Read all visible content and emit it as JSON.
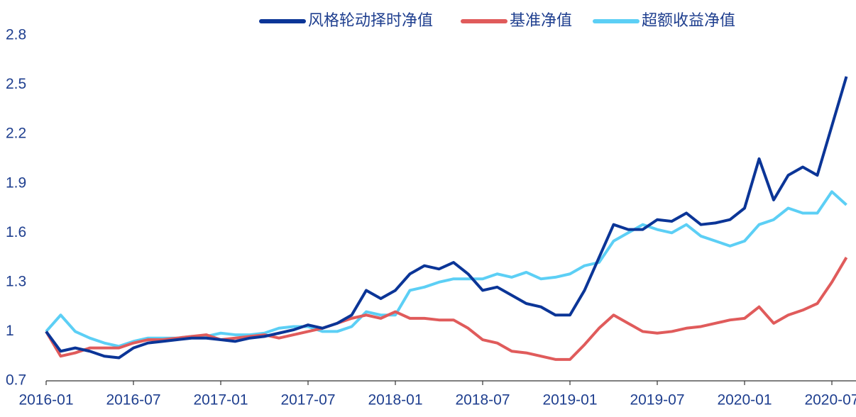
{
  "chart_data": {
    "type": "line",
    "x": [
      "2016-01",
      "2016-02",
      "2016-03",
      "2016-04",
      "2016-05",
      "2016-06",
      "2016-07",
      "2016-08",
      "2016-09",
      "2016-10",
      "2016-11",
      "2016-12",
      "2017-01",
      "2017-02",
      "2017-03",
      "2017-04",
      "2017-05",
      "2017-06",
      "2017-07",
      "2017-08",
      "2017-09",
      "2017-10",
      "2017-11",
      "2017-12",
      "2018-01",
      "2018-02",
      "2018-03",
      "2018-04",
      "2018-05",
      "2018-06",
      "2018-07",
      "2018-08",
      "2018-09",
      "2018-10",
      "2018-11",
      "2018-12",
      "2019-01",
      "2019-02",
      "2019-03",
      "2019-04",
      "2019-05",
      "2019-06",
      "2019-07",
      "2019-08",
      "2019-09",
      "2019-10",
      "2019-11",
      "2019-12",
      "2020-01",
      "2020-02",
      "2020-03",
      "2020-04",
      "2020-05",
      "2020-06",
      "2020-07",
      "2020-08"
    ],
    "series": [
      {
        "name": "风格轮动择时净值",
        "color": "#0b3597",
        "values": [
          1.0,
          0.88,
          0.9,
          0.88,
          0.85,
          0.84,
          0.9,
          0.93,
          0.94,
          0.95,
          0.96,
          0.96,
          0.95,
          0.94,
          0.96,
          0.97,
          0.99,
          1.01,
          1.04,
          1.02,
          1.05,
          1.1,
          1.25,
          1.2,
          1.25,
          1.35,
          1.4,
          1.38,
          1.42,
          1.35,
          1.25,
          1.27,
          1.22,
          1.17,
          1.15,
          1.1,
          1.1,
          1.25,
          1.45,
          1.65,
          1.62,
          1.62,
          1.68,
          1.67,
          1.72,
          1.65,
          1.66,
          1.68,
          1.75,
          2.05,
          1.8,
          1.95,
          2.0,
          1.95,
          2.25,
          2.55
        ]
      },
      {
        "name": "基准净值",
        "color": "#e05b5b",
        "values": [
          1.0,
          0.85,
          0.87,
          0.9,
          0.9,
          0.9,
          0.93,
          0.95,
          0.95,
          0.96,
          0.97,
          0.98,
          0.95,
          0.96,
          0.97,
          0.98,
          0.96,
          0.98,
          1.0,
          1.02,
          1.05,
          1.08,
          1.1,
          1.08,
          1.12,
          1.08,
          1.08,
          1.07,
          1.07,
          1.02,
          0.95,
          0.93,
          0.88,
          0.87,
          0.85,
          0.83,
          0.83,
          0.92,
          1.02,
          1.1,
          1.05,
          1.0,
          0.99,
          1.0,
          1.02,
          1.03,
          1.05,
          1.07,
          1.08,
          1.15,
          1.05,
          1.1,
          1.13,
          1.17,
          1.3,
          1.45
        ]
      },
      {
        "name": "超额收益净值",
        "color": "#5ccff5",
        "values": [
          1.0,
          1.1,
          1.0,
          0.96,
          0.93,
          0.91,
          0.94,
          0.96,
          0.96,
          0.96,
          0.97,
          0.97,
          0.99,
          0.98,
          0.98,
          0.99,
          1.02,
          1.03,
          1.03,
          1.0,
          1.0,
          1.03,
          1.12,
          1.1,
          1.1,
          1.25,
          1.27,
          1.3,
          1.32,
          1.32,
          1.32,
          1.35,
          1.33,
          1.36,
          1.32,
          1.33,
          1.35,
          1.4,
          1.42,
          1.55,
          1.6,
          1.65,
          1.62,
          1.6,
          1.65,
          1.58,
          1.55,
          1.52,
          1.55,
          1.65,
          1.68,
          1.75,
          1.72,
          1.72,
          1.85,
          1.77
        ]
      }
    ],
    "ylim": [
      0.7,
      2.8
    ],
    "yticks": [
      0.7,
      1,
      1.3,
      1.6,
      1.9,
      2.2,
      2.5,
      2.8
    ],
    "xticks": [
      "2016-01",
      "2016-07",
      "2017-01",
      "2017-07",
      "2018-01",
      "2018-07",
      "2019-01",
      "2019-07",
      "2020-01",
      "2020-07"
    ],
    "grid": false,
    "legend": "top"
  }
}
